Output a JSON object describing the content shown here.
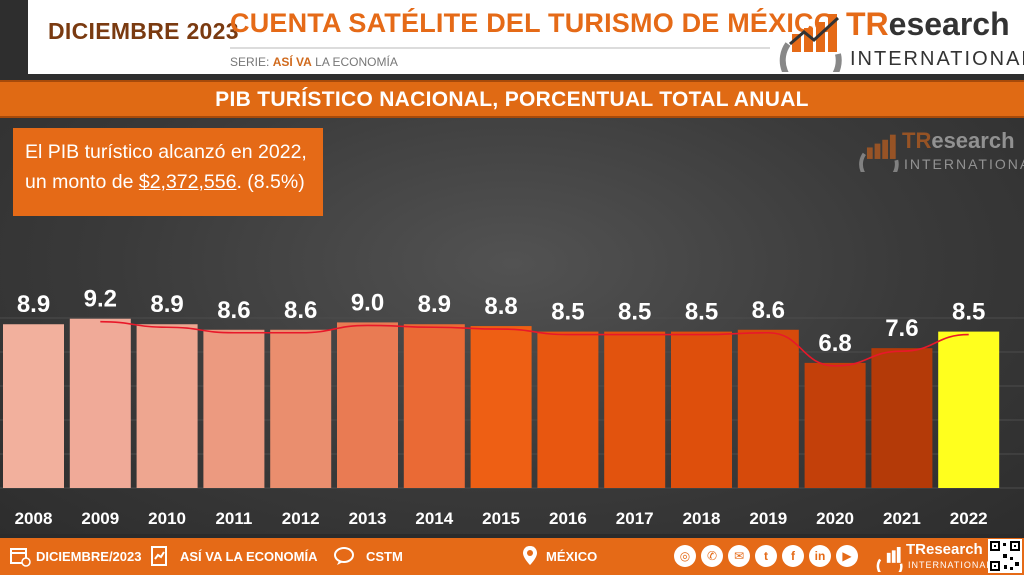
{
  "header": {
    "date_title": "DICIEMBRE 2023",
    "main_title": "CUENTA SATÉLITE DEL TURISMO DE MÉXICO",
    "series_prefix": "SERIE: ",
    "series_bold": "ASÍ VA",
    "series_rest": " LA ECONOMÍA"
  },
  "logo": {
    "tr": "TR",
    "rest": "esearch",
    "intl": "INTERNATIONAL"
  },
  "subtitle": "PIB TURÍSTICO NACIONAL, PORCENTUAL TOTAL ANUAL",
  "note": {
    "line1": "El PIB turístico alcanzó en 2022,",
    "line2_prefix": "un monto de ",
    "amount": "$2,372,556",
    "line2_suffix": ". (8.5%)"
  },
  "chart_data": {
    "type": "bar",
    "title": "PIB TURÍSTICO NACIONAL, PORCENTUAL TOTAL ANUAL",
    "categories": [
      "2008",
      "2009",
      "2010",
      "2011",
      "2012",
      "2013",
      "2014",
      "2015",
      "2016",
      "2017",
      "2018",
      "2019",
      "2020",
      "2021",
      "2022"
    ],
    "values": [
      8.9,
      9.2,
      8.9,
      8.6,
      8.6,
      9.0,
      8.9,
      8.8,
      8.5,
      8.5,
      8.5,
      8.6,
      6.8,
      7.6,
      8.5
    ],
    "value_labels": [
      "8.9",
      "9.2",
      "8.9",
      "8.6",
      "8.6",
      "9.0",
      "8.9",
      "8.8",
      "8.5",
      "8.5",
      "8.5",
      "8.6",
      "6.8",
      "7.6",
      "8.5"
    ],
    "bar_colors": [
      "#f2b09d",
      "#f0aa98",
      "#eea690",
      "#ec9a80",
      "#ea8e6e",
      "#e97b53",
      "#ea6a35",
      "#ee5f14",
      "#e85710",
      "#e2530e",
      "#de4f0c",
      "#d64a0b",
      "#c3400a",
      "#b43a08",
      "#ffff1e"
    ],
    "trend_color": "#e8182a",
    "trend_line": "red line following the values (2009–2022)",
    "xlabel": "",
    "ylabel": "",
    "legend": "none",
    "grid": true
  },
  "footer": {
    "date": "DICIEMBRE/2023",
    "series": "ASÍ VA LA ECONOMÍA",
    "source": "CSTM",
    "place": "MÉXICO",
    "social": [
      {
        "icon": "globe-icon",
        "glyph": "◎"
      },
      {
        "icon": "phone-icon",
        "glyph": "✆"
      },
      {
        "icon": "mail-icon",
        "glyph": "✉"
      },
      {
        "icon": "twitter-icon",
        "glyph": "t"
      },
      {
        "icon": "facebook-icon",
        "glyph": "f"
      },
      {
        "icon": "linkedin-icon",
        "glyph": "in"
      },
      {
        "icon": "youtube-icon",
        "glyph": "▶"
      }
    ]
  }
}
